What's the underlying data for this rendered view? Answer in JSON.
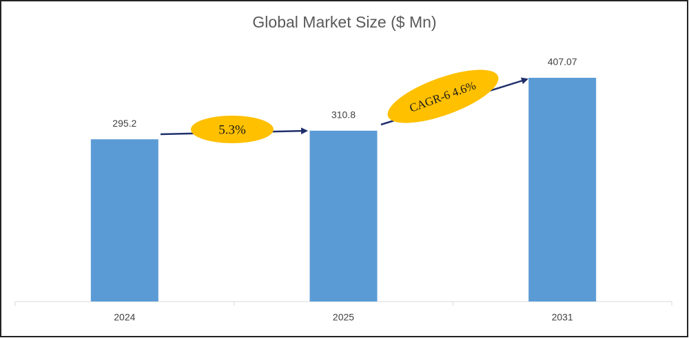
{
  "chart_data": {
    "type": "bar",
    "title": "Global Market Size ($ Mn)",
    "categories": [
      "2024",
      "2025",
      "2031"
    ],
    "values": [
      295.2,
      310.8,
      407.07
    ],
    "color": "#5b9bd5",
    "annotations": [
      "5.3%",
      "CAGR-6 4.6%"
    ]
  }
}
